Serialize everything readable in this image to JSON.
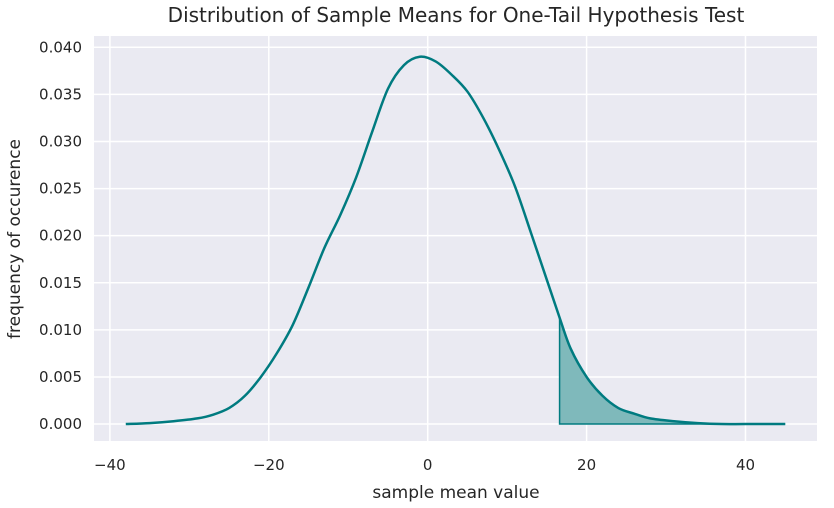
{
  "chart_data": {
    "type": "area",
    "title": "Distribution of Sample Means for One-Tail Hypothesis Test",
    "xlabel": "sample mean value",
    "ylabel": "frequency of occurence",
    "xlim": [
      -42,
      49
    ],
    "ylim": [
      -0.0018,
      0.0412
    ],
    "x_ticks": [
      -40,
      -20,
      0,
      20,
      40
    ],
    "x_tick_labels": [
      "−40",
      "−20",
      "0",
      "20",
      "40"
    ],
    "y_ticks": [
      0.0,
      0.005,
      0.01,
      0.015,
      0.02,
      0.025,
      0.03,
      0.035,
      0.04
    ],
    "y_tick_labels": [
      "0.000",
      "0.005",
      "0.010",
      "0.015",
      "0.020",
      "0.025",
      "0.030",
      "0.035",
      "0.040"
    ],
    "grid": true,
    "colors": {
      "background": "#eaeaf2",
      "grid": "#ffffff",
      "line": "#007b80",
      "fill": "#7fb9bb"
    },
    "series": [
      {
        "points": [
          [
            -38,
            0.0
          ],
          [
            -35,
            0.0001
          ],
          [
            -32,
            0.0003
          ],
          [
            -29,
            0.0006
          ],
          [
            -27,
            0.001
          ],
          [
            -25,
            0.0017
          ],
          [
            -23,
            0.003
          ],
          [
            -21,
            0.005
          ],
          [
            -19,
            0.0075
          ],
          [
            -17,
            0.0105
          ],
          [
            -15,
            0.0145
          ],
          [
            -13,
            0.0187
          ],
          [
            -11,
            0.0222
          ],
          [
            -9,
            0.0262
          ],
          [
            -7,
            0.031
          ],
          [
            -5,
            0.0356
          ],
          [
            -3,
            0.0381
          ],
          [
            -1,
            0.039
          ],
          [
            1,
            0.0385
          ],
          [
            3,
            0.0371
          ],
          [
            5,
            0.0353
          ],
          [
            7,
            0.0325
          ],
          [
            9,
            0.0291
          ],
          [
            11,
            0.0252
          ],
          [
            13,
            0.0203
          ],
          [
            15,
            0.0153
          ],
          [
            16.6,
            0.0113
          ],
          [
            18,
            0.008
          ],
          [
            20,
            0.005
          ],
          [
            22,
            0.003
          ],
          [
            24,
            0.0017
          ],
          [
            26,
            0.0011
          ],
          [
            28,
            0.0006
          ],
          [
            31,
            0.0003
          ],
          [
            34,
            0.0001
          ],
          [
            37,
            0.0
          ],
          [
            40,
            0.0
          ],
          [
            45,
            0.0
          ]
        ]
      }
    ],
    "shaded_region": {
      "x_start": 16.6,
      "x_end": 45
    }
  }
}
